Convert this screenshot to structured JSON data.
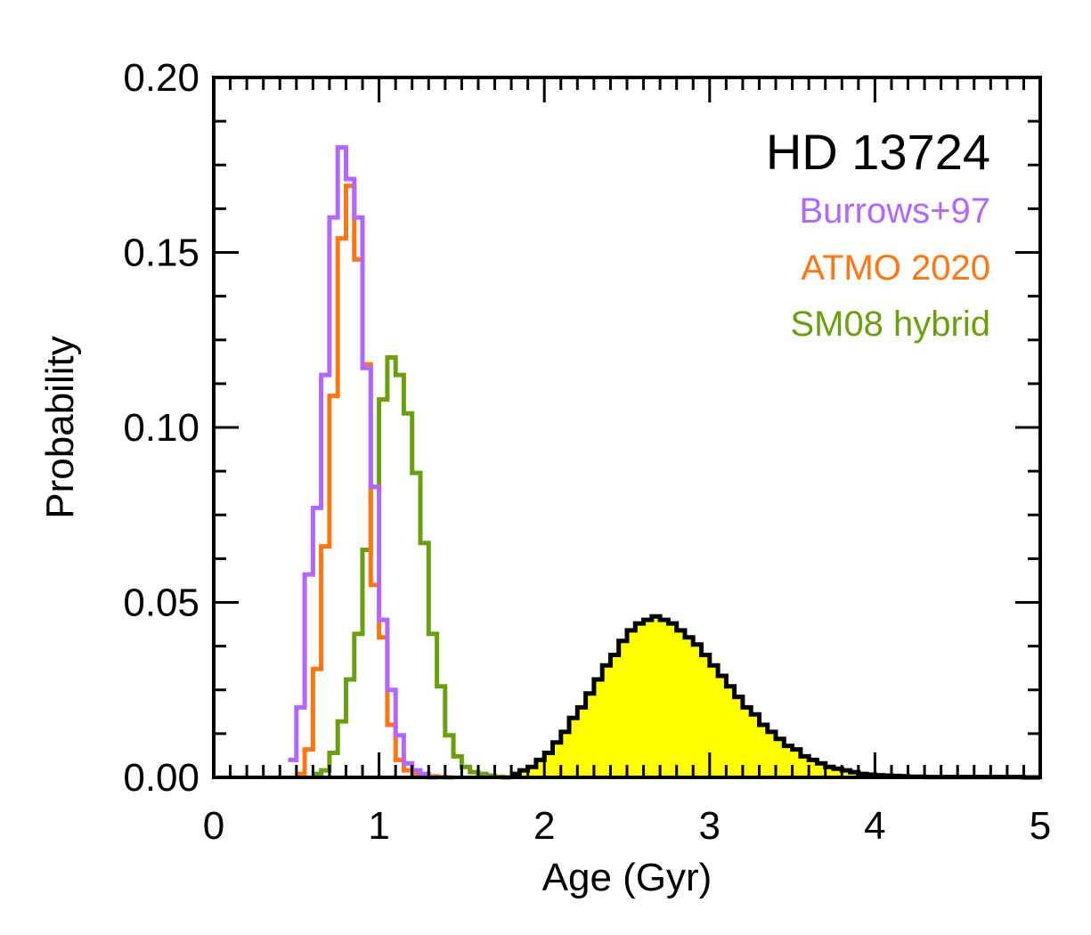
{
  "colors": {
    "burrows": "#b266ff",
    "atmo": "#ff7510",
    "sm08": "#6aa010",
    "fill": "#ffff00",
    "axis": "#000000"
  },
  "chart_data": {
    "type": "histogram",
    "title": "HD 13724",
    "xlabel": "Age (Gyr)",
    "ylabel": "Probability",
    "xlim": [
      0,
      5
    ],
    "ylim": [
      0,
      0.2
    ],
    "xticks": [
      0,
      1,
      2,
      3,
      4,
      5
    ],
    "yticks": [
      0.0,
      0.05,
      0.1,
      0.15,
      0.2
    ],
    "xtick_labels": [
      "0",
      "1",
      "2",
      "3",
      "4",
      "5"
    ],
    "ytick_labels": [
      "0.00",
      "0.05",
      "0.10",
      "0.15",
      "0.20"
    ],
    "legend": [
      {
        "label": "Burrows+97",
        "series": "burrows"
      },
      {
        "label": "ATMO 2020",
        "series": "atmo"
      },
      {
        "label": "SM08 hybrid",
        "series": "sm08"
      }
    ],
    "series": [
      {
        "name": "burrows",
        "label": "Burrows+97",
        "style": "step",
        "bin_width": 0.05,
        "x_start": 0.45,
        "values": [
          0.005,
          0.02,
          0.058,
          0.077,
          0.115,
          0.16,
          0.18,
          0.171,
          0.16,
          0.117,
          0.083,
          0.045,
          0.025,
          0.012,
          0.004,
          0.002,
          0.001,
          0.0
        ]
      },
      {
        "name": "atmo",
        "label": "ATMO 2020",
        "style": "step",
        "bin_width": 0.05,
        "x_start": 0.5,
        "values": [
          0.001,
          0.008,
          0.031,
          0.066,
          0.109,
          0.154,
          0.169,
          0.148,
          0.118,
          0.055,
          0.04,
          0.015,
          0.005,
          0.002,
          0.001,
          0.0005,
          0.0003,
          0.0001,
          0.0
        ]
      },
      {
        "name": "sm08",
        "label": "SM08 hybrid",
        "style": "step",
        "bin_width": 0.05,
        "x_start": 0.6,
        "values": [
          0.001,
          0.002,
          0.007,
          0.016,
          0.028,
          0.041,
          0.065,
          0.083,
          0.108,
          0.12,
          0.115,
          0.104,
          0.087,
          0.067,
          0.041,
          0.026,
          0.012,
          0.006,
          0.003,
          0.0015,
          0.001,
          0.0005,
          0.0002,
          0.0
        ]
      },
      {
        "name": "fiducial",
        "label": "",
        "style": "filled-step",
        "bin_width": 0.05,
        "x_start": 1.8,
        "values": [
          0.001,
          0.002,
          0.003,
          0.005,
          0.007,
          0.01,
          0.013,
          0.017,
          0.02,
          0.024,
          0.028,
          0.032,
          0.035,
          0.039,
          0.042,
          0.044,
          0.045,
          0.046,
          0.045,
          0.044,
          0.042,
          0.04,
          0.038,
          0.035,
          0.032,
          0.029,
          0.026,
          0.023,
          0.02,
          0.018,
          0.015,
          0.013,
          0.011,
          0.009,
          0.008,
          0.006,
          0.005,
          0.004,
          0.003,
          0.0025,
          0.002,
          0.0015,
          0.001,
          0.0008,
          0.0006,
          0.0005,
          0.0004,
          0.0003,
          0.0002,
          0.0002,
          0.0001,
          0.0001,
          0.0001,
          0.0001,
          0.0001,
          0.0001,
          0.0001,
          0.0001,
          0.0001,
          0.0001,
          0.0001,
          0.0001,
          0.0,
          0.0
        ]
      }
    ]
  }
}
